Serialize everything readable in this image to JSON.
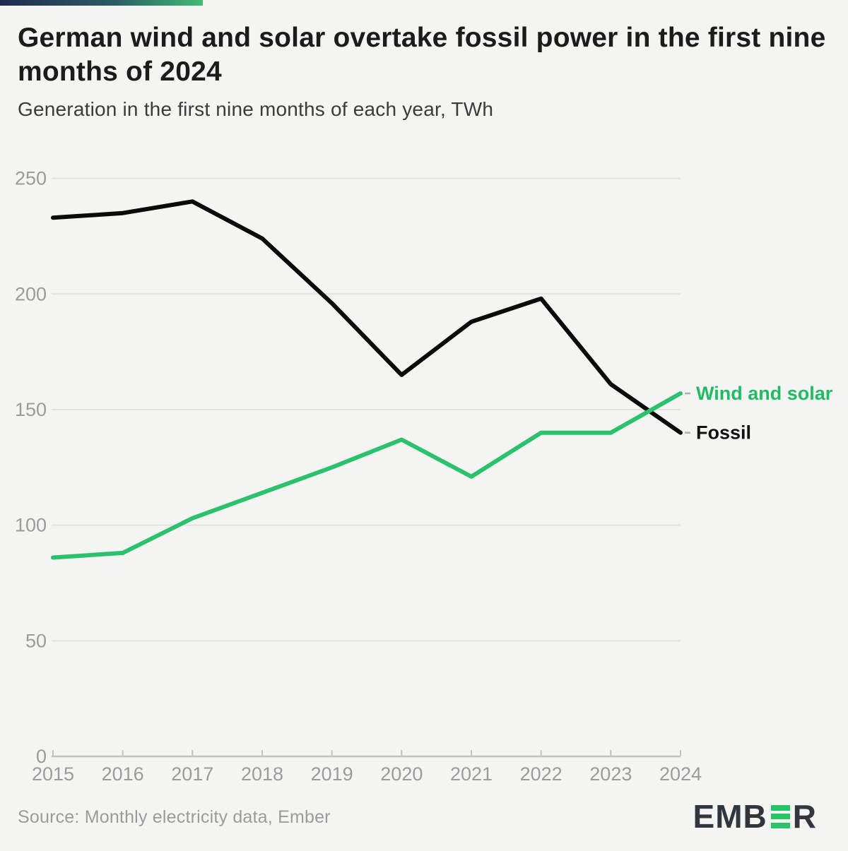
{
  "header": {
    "title_line1": "German wind and solar overtake fossil power in the first nine",
    "title_line2": "months of 2024",
    "subtitle": "Generation in the first nine months of each year, TWh"
  },
  "chart_data": {
    "type": "line",
    "title": "German wind and solar overtake fossil power in the first nine months of 2024",
    "subtitle": "Generation in the first nine months of each year, TWh",
    "unit": "TWh",
    "x": [
      2015,
      2016,
      2017,
      2018,
      2019,
      2020,
      2021,
      2022,
      2023,
      2024
    ],
    "series": [
      {
        "name": "Fossil",
        "color": "#0b0b0b",
        "label_color": "#121212",
        "values": [
          233,
          235,
          240,
          224,
          196,
          165,
          188,
          198,
          161,
          140
        ]
      },
      {
        "name": "Wind and solar",
        "color": "#2cc26d",
        "label_color": "#21bb65",
        "values": [
          86,
          88,
          103,
          114,
          125,
          137,
          121,
          140,
          140,
          157
        ]
      }
    ],
    "ylim": [
      0,
      250
    ],
    "yticks": [
      0,
      50,
      100,
      150,
      200,
      250
    ],
    "grid": "horizontal",
    "legend_position": "line-end-labels"
  },
  "footer": {
    "source": "Source: Monthly electricity data, Ember",
    "logo_prefix": "EMB",
    "logo_suffix": "R"
  },
  "colors": {
    "background": "#f4f4f3",
    "gridline": "#e2e2e1",
    "axis": "#c2c2c1",
    "tick_label": "#9b9b9b",
    "fossil_line": "#0b0b0b",
    "wind_solar_line": "#2cc26d",
    "brand_gradient_start": "#212a4d",
    "brand_gradient_end": "#41bb73",
    "logo_dark": "#33373c",
    "logo_green": "#27c468"
  }
}
